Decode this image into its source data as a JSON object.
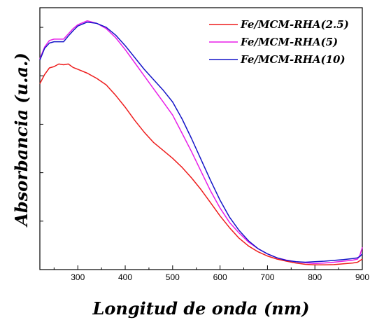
{
  "chart_data": {
    "type": "line",
    "xlabel": "Longitud de onda (nm)",
    "ylabel": "Absorbancia (u.a.)",
    "xlim": [
      220,
      900
    ],
    "ylim": [
      0,
      1
    ],
    "x_ticks": [
      "300",
      "400",
      "500",
      "600",
      "700",
      "800",
      "900"
    ],
    "y_ticks_labeled": false,
    "grid": false,
    "legend_position": "top-right",
    "series": [
      {
        "name": "Fe/MCM-RHA(2.5)",
        "color": "#ee1c1c",
        "points": [
          [
            220,
            0.71
          ],
          [
            230,
            0.745
          ],
          [
            240,
            0.77
          ],
          [
            250,
            0.775
          ],
          [
            260,
            0.785
          ],
          [
            270,
            0.782
          ],
          [
            280,
            0.785
          ],
          [
            290,
            0.772
          ],
          [
            300,
            0.765
          ],
          [
            320,
            0.75
          ],
          [
            340,
            0.73
          ],
          [
            360,
            0.705
          ],
          [
            380,
            0.665
          ],
          [
            400,
            0.62
          ],
          [
            420,
            0.57
          ],
          [
            440,
            0.525
          ],
          [
            460,
            0.485
          ],
          [
            480,
            0.455
          ],
          [
            500,
            0.425
          ],
          [
            520,
            0.39
          ],
          [
            540,
            0.35
          ],
          [
            560,
            0.305
          ],
          [
            580,
            0.255
          ],
          [
            600,
            0.205
          ],
          [
            620,
            0.16
          ],
          [
            640,
            0.12
          ],
          [
            660,
            0.09
          ],
          [
            680,
            0.068
          ],
          [
            700,
            0.052
          ],
          [
            720,
            0.04
          ],
          [
            740,
            0.032
          ],
          [
            760,
            0.025
          ],
          [
            780,
            0.02
          ],
          [
            800,
            0.018
          ],
          [
            820,
            0.018
          ],
          [
            840,
            0.019
          ],
          [
            860,
            0.022
          ],
          [
            880,
            0.025
          ],
          [
            890,
            0.028
          ],
          [
            895,
            0.034
          ],
          [
            900,
            0.04
          ]
        ]
      },
      {
        "name": "Fe/MCM-RHA(5)",
        "color": "#e81ee8",
        "points": [
          [
            220,
            0.805
          ],
          [
            230,
            0.85
          ],
          [
            240,
            0.875
          ],
          [
            250,
            0.88
          ],
          [
            260,
            0.88
          ],
          [
            270,
            0.88
          ],
          [
            280,
            0.9
          ],
          [
            290,
            0.92
          ],
          [
            300,
            0.935
          ],
          [
            320,
            0.95
          ],
          [
            340,
            0.94
          ],
          [
            360,
            0.92
          ],
          [
            380,
            0.885
          ],
          [
            400,
            0.84
          ],
          [
            420,
            0.79
          ],
          [
            440,
            0.74
          ],
          [
            460,
            0.69
          ],
          [
            480,
            0.64
          ],
          [
            500,
            0.59
          ],
          [
            520,
            0.52
          ],
          [
            540,
            0.45
          ],
          [
            560,
            0.375
          ],
          [
            580,
            0.3
          ],
          [
            600,
            0.235
          ],
          [
            620,
            0.18
          ],
          [
            640,
            0.14
          ],
          [
            660,
            0.105
          ],
          [
            680,
            0.08
          ],
          [
            700,
            0.06
          ],
          [
            720,
            0.045
          ],
          [
            740,
            0.036
          ],
          [
            760,
            0.03
          ],
          [
            780,
            0.026
          ],
          [
            800,
            0.023
          ],
          [
            820,
            0.025
          ],
          [
            840,
            0.028
          ],
          [
            860,
            0.032
          ],
          [
            880,
            0.036
          ],
          [
            890,
            0.04
          ],
          [
            895,
            0.055
          ],
          [
            900,
            0.085
          ]
        ]
      },
      {
        "name": "Fe/MCM-RHA(10)",
        "color": "#1414c8",
        "points": [
          [
            220,
            0.8
          ],
          [
            230,
            0.845
          ],
          [
            240,
            0.865
          ],
          [
            250,
            0.87
          ],
          [
            260,
            0.87
          ],
          [
            270,
            0.87
          ],
          [
            280,
            0.892
          ],
          [
            290,
            0.912
          ],
          [
            300,
            0.93
          ],
          [
            320,
            0.945
          ],
          [
            340,
            0.94
          ],
          [
            360,
            0.925
          ],
          [
            380,
            0.895
          ],
          [
            400,
            0.855
          ],
          [
            420,
            0.81
          ],
          [
            440,
            0.765
          ],
          [
            460,
            0.725
          ],
          [
            480,
            0.685
          ],
          [
            500,
            0.64
          ],
          [
            520,
            0.575
          ],
          [
            540,
            0.5
          ],
          [
            560,
            0.42
          ],
          [
            580,
            0.34
          ],
          [
            600,
            0.265
          ],
          [
            620,
            0.2
          ],
          [
            640,
            0.15
          ],
          [
            660,
            0.11
          ],
          [
            680,
            0.08
          ],
          [
            700,
            0.06
          ],
          [
            720,
            0.045
          ],
          [
            740,
            0.035
          ],
          [
            760,
            0.03
          ],
          [
            780,
            0.028
          ],
          [
            800,
            0.03
          ],
          [
            820,
            0.032
          ],
          [
            840,
            0.035
          ],
          [
            860,
            0.038
          ],
          [
            880,
            0.042
          ],
          [
            890,
            0.045
          ],
          [
            895,
            0.05
          ],
          [
            900,
            0.06
          ]
        ]
      }
    ]
  }
}
